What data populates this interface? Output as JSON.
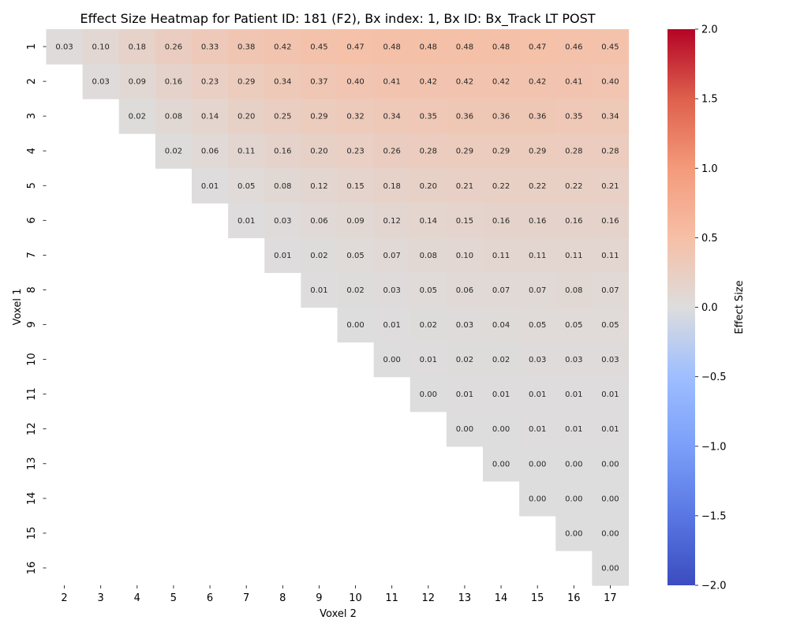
{
  "chart_data": {
    "type": "heatmap",
    "title": "Effect Size Heatmap for Patient ID: 181 (F2), Bx index: 1, Bx ID: Bx_Track LT POST",
    "xlabel": "Voxel 2",
    "ylabel": "Voxel 1",
    "x_categories": [
      "2",
      "3",
      "4",
      "5",
      "6",
      "7",
      "8",
      "9",
      "10",
      "11",
      "12",
      "13",
      "14",
      "15",
      "16",
      "17"
    ],
    "y_categories": [
      "1",
      "2",
      "3",
      "4",
      "5",
      "6",
      "7",
      "8",
      "9",
      "10",
      "11",
      "12",
      "13",
      "14",
      "15",
      "16"
    ],
    "rows": [
      [
        "0.03",
        "0.10",
        "0.18",
        "0.26",
        "0.33",
        "0.38",
        "0.42",
        "0.45",
        "0.47",
        "0.48",
        "0.48",
        "0.48",
        "0.48",
        "0.47",
        "0.46",
        "0.45"
      ],
      [
        null,
        "0.03",
        "0.09",
        "0.16",
        "0.23",
        "0.29",
        "0.34",
        "0.37",
        "0.40",
        "0.41",
        "0.42",
        "0.42",
        "0.42",
        "0.42",
        "0.41",
        "0.40"
      ],
      [
        null,
        null,
        "0.02",
        "0.08",
        "0.14",
        "0.20",
        "0.25",
        "0.29",
        "0.32",
        "0.34",
        "0.35",
        "0.36",
        "0.36",
        "0.36",
        "0.35",
        "0.34"
      ],
      [
        null,
        null,
        null,
        "0.02",
        "0.06",
        "0.11",
        "0.16",
        "0.20",
        "0.23",
        "0.26",
        "0.28",
        "0.29",
        "0.29",
        "0.29",
        "0.28",
        "0.28"
      ],
      [
        null,
        null,
        null,
        null,
        "0.01",
        "0.05",
        "0.08",
        "0.12",
        "0.15",
        "0.18",
        "0.20",
        "0.21",
        "0.22",
        "0.22",
        "0.22",
        "0.21"
      ],
      [
        null,
        null,
        null,
        null,
        null,
        "0.01",
        "0.03",
        "0.06",
        "0.09",
        "0.12",
        "0.14",
        "0.15",
        "0.16",
        "0.16",
        "0.16",
        "0.16"
      ],
      [
        null,
        null,
        null,
        null,
        null,
        null,
        "0.01",
        "0.02",
        "0.05",
        "0.07",
        "0.08",
        "0.10",
        "0.11",
        "0.11",
        "0.11",
        "0.11"
      ],
      [
        null,
        null,
        null,
        null,
        null,
        null,
        null,
        "0.01",
        "0.02",
        "0.03",
        "0.05",
        "0.06",
        "0.07",
        "0.07",
        "0.08",
        "0.07"
      ],
      [
        null,
        null,
        null,
        null,
        null,
        null,
        null,
        null,
        "0.00",
        "0.01",
        "0.02",
        "0.03",
        "0.04",
        "0.05",
        "0.05",
        "0.05"
      ],
      [
        null,
        null,
        null,
        null,
        null,
        null,
        null,
        null,
        null,
        "0.00",
        "0.01",
        "0.02",
        "0.02",
        "0.03",
        "0.03",
        "0.03"
      ],
      [
        null,
        null,
        null,
        null,
        null,
        null,
        null,
        null,
        null,
        null,
        "0.00",
        "0.01",
        "0.01",
        "0.01",
        "0.01",
        "0.01"
      ],
      [
        null,
        null,
        null,
        null,
        null,
        null,
        null,
        null,
        null,
        null,
        null,
        "0.00",
        "0.00",
        "0.01",
        "0.01",
        "0.01"
      ],
      [
        null,
        null,
        null,
        null,
        null,
        null,
        null,
        null,
        null,
        null,
        null,
        null,
        "0.00",
        "0.00",
        "0.00",
        "0.00"
      ],
      [
        null,
        null,
        null,
        null,
        null,
        null,
        null,
        null,
        null,
        null,
        null,
        null,
        null,
        "0.00",
        "0.00",
        "0.00"
      ],
      [
        null,
        null,
        null,
        null,
        null,
        null,
        null,
        null,
        null,
        null,
        null,
        null,
        null,
        null,
        "0.00",
        "0.00"
      ],
      [
        null,
        null,
        null,
        null,
        null,
        null,
        null,
        null,
        null,
        null,
        null,
        null,
        null,
        null,
        null,
        "0.00"
      ]
    ],
    "colorbar": {
      "label": "Effect Size",
      "vmin": -2.0,
      "vmax": 2.0,
      "tick_values": [
        2.0,
        1.5,
        1.0,
        0.5,
        0.0,
        -0.5,
        -1.0,
        -1.5,
        -2.0
      ],
      "tick_labels": [
        "2.0",
        "1.5",
        "1.0",
        "0.5",
        "0.0",
        "−0.5",
        "−1.0",
        "−1.5",
        "−2.0"
      ],
      "colormap": "coolwarm",
      "colors": {
        "low": "#3b4cc0",
        "mid": "#dddddd",
        "high": "#b40426"
      }
    },
    "grid": false,
    "legend": "colorbar-right"
  }
}
